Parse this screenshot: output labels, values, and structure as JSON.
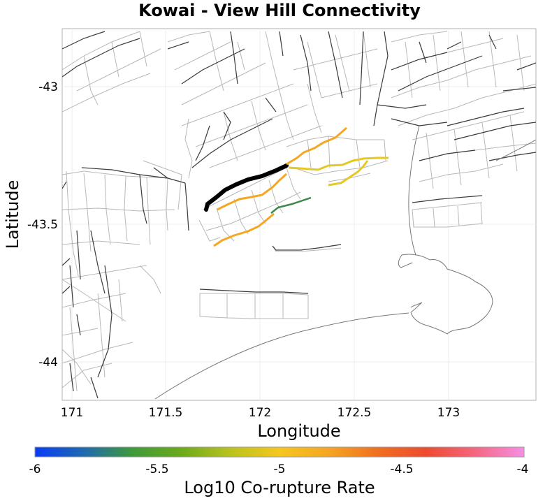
{
  "title": "Kowai - View Hill Connectivity",
  "x_axis_label": "Longitude",
  "y_axis_label": "Latitude",
  "x_ticks": [
    "171",
    "171.5",
    "172",
    "172.5",
    "173"
  ],
  "y_ticks": [
    "-43",
    "-43.5",
    "-44"
  ],
  "colorbar": {
    "label": "Log10 Co-rupture Rate",
    "ticks": [
      "-6",
      "-5.5",
      "-5",
      "-4.5",
      "-4"
    ],
    "gradient_stops": [
      "#0a3cf5",
      "#1f6ab0",
      "#3f9a3a",
      "#6caa1c",
      "#bbc21e",
      "#f5c71f",
      "#f5a623",
      "#f07020",
      "#ee4a30",
      "#f56680",
      "#f590e6"
    ]
  },
  "colors": {
    "target_fault": "#000000",
    "rate_green": "#3a8a4a",
    "rate_orange": "#f5a623",
    "rate_yellow": "#e6c823",
    "fault_trace": "#3a3a3a",
    "fault_patch": "#b8b8b8",
    "coastline": "#777777"
  }
}
